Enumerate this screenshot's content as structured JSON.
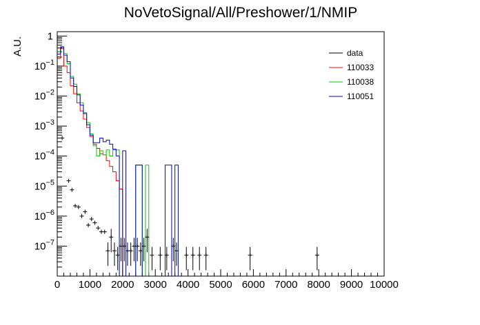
{
  "chart_data": {
    "type": "line",
    "title": "NoVetoSignal/All/Preshower/1/NMIP",
    "xlabel": "",
    "ylabel": "A.U.",
    "xlim": [
      0,
      10000
    ],
    "ylim": [
      1e-08,
      1.4
    ],
    "y_scale": "log",
    "grid": false,
    "legend_position": "top-right",
    "x_ticks": [
      "0",
      "1000",
      "2000",
      "3000",
      "4000",
      "5000",
      "6000",
      "7000",
      "8000",
      "9000",
      "10000"
    ],
    "y_ticks": [
      {
        "value": 1e-07,
        "label": "10",
        "exp": "−7"
      },
      {
        "value": 1e-06,
        "label": "10",
        "exp": "−6"
      },
      {
        "value": 1e-05,
        "label": "10",
        "exp": "−5"
      },
      {
        "value": 0.0001,
        "label": "10",
        "exp": "−4"
      },
      {
        "value": 0.001,
        "label": "10",
        "exp": "−3"
      },
      {
        "value": 0.01,
        "label": "10",
        "exp": "−2"
      },
      {
        "value": 0.1,
        "label": "10",
        "exp": "−1"
      },
      {
        "value": 1,
        "label": "1",
        "exp": ""
      }
    ],
    "bin_width": 100,
    "series": [
      {
        "name": "110033",
        "color": "#ff0000",
        "bins": [
          [
            0,
            0.18
          ],
          [
            100,
            0.38
          ],
          [
            200,
            0.1
          ],
          [
            300,
            0.06
          ],
          [
            400,
            0.022
          ],
          [
            500,
            0.012
          ],
          [
            600,
            0.006
          ],
          [
            700,
            0.0032
          ],
          [
            800,
            0.0017
          ],
          [
            900,
            0.0009
          ],
          [
            1000,
            0.00045
          ],
          [
            1100,
            0.00025
          ],
          [
            1200,
            0.00018
          ],
          [
            1300,
            0.00012
          ],
          [
            1400,
            0.00011
          ],
          [
            1500,
            7e-05
          ],
          [
            1600,
            4.5e-05
          ],
          [
            1700,
            3e-05
          ],
          [
            1800,
            1.5e-05
          ],
          [
            1900,
            8e-06
          ]
        ]
      },
      {
        "name": "110038",
        "color": "#00cc00",
        "bins": [
          [
            0,
            0.3
          ],
          [
            100,
            0.45
          ],
          [
            200,
            0.26
          ],
          [
            300,
            0.12
          ],
          [
            400,
            0.045
          ],
          [
            500,
            0.025
          ],
          [
            600,
            0.012
          ],
          [
            700,
            0.006
          ],
          [
            800,
            0.0028
          ],
          [
            900,
            0.0013
          ],
          [
            1000,
            0.00055
          ],
          [
            1100,
            0.00022
          ],
          [
            1200,
            0.0001
          ],
          [
            1300,
            0.00015
          ],
          [
            1400,
            0.00011
          ],
          [
            1500,
            0.00016
          ],
          [
            1600,
            0.0001
          ],
          [
            1700,
            0.00016
          ],
          [
            1800,
            0.00016
          ],
          [
            1900,
            1e-08
          ],
          [
            2000,
            1e-08
          ],
          [
            2100,
            1e-08
          ],
          [
            2200,
            1e-08
          ],
          [
            2300,
            1e-08
          ],
          [
            2400,
            5e-05
          ],
          [
            2500,
            5e-05
          ],
          [
            2600,
            1e-08
          ],
          [
            2700,
            5e-05
          ],
          [
            2800,
            1e-08
          ]
        ]
      },
      {
        "name": "110051",
        "color": "#0000cc",
        "bins": [
          [
            0,
            0.25
          ],
          [
            100,
            0.42
          ],
          [
            200,
            0.23
          ],
          [
            300,
            0.14
          ],
          [
            400,
            0.04
          ],
          [
            500,
            0.021
          ],
          [
            600,
            0.011
          ],
          [
            700,
            0.005
          ],
          [
            800,
            0.0026
          ],
          [
            900,
            0.0011
          ],
          [
            1000,
            0.0005
          ],
          [
            1100,
            0.00028
          ],
          [
            1200,
            0.00028
          ],
          [
            1300,
            0.0004
          ],
          [
            1400,
            0.0003
          ],
          [
            1500,
            0.00034
          ],
          [
            1600,
            0.00025
          ],
          [
            1700,
            0.00017
          ],
          [
            1800,
            0.0001
          ],
          [
            1900,
            1e-08
          ],
          [
            2000,
            0.00015
          ],
          [
            2100,
            1e-08
          ],
          [
            2200,
            1e-08
          ],
          [
            2300,
            1e-08
          ],
          [
            2400,
            5e-05
          ],
          [
            2500,
            5e-05
          ],
          [
            2600,
            1e-08
          ],
          [
            2700,
            1e-08
          ],
          [
            2800,
            1e-08
          ],
          [
            2900,
            1e-08
          ],
          [
            3000,
            1e-08
          ],
          [
            3100,
            1e-08
          ],
          [
            3200,
            1e-08
          ],
          [
            3300,
            5e-05
          ],
          [
            3400,
            5e-05
          ],
          [
            3500,
            1e-08
          ],
          [
            3600,
            5e-05
          ],
          [
            3700,
            1e-08
          ]
        ]
      },
      {
        "name": "data",
        "color": "#000000",
        "style": "markers",
        "points": [
          [
            150,
            0.0004
          ],
          [
            350,
            1.5e-05
          ],
          [
            450,
            7.5e-06
          ],
          [
            550,
            2.2e-06
          ],
          [
            650,
            2e-06
          ],
          [
            750,
            1e-06
          ],
          [
            850,
            1.4e-06
          ],
          [
            950,
            5e-07
          ],
          [
            1050,
            8e-07
          ],
          [
            1150,
            6e-07
          ],
          [
            1250,
            4e-07
          ],
          [
            1350,
            3e-07
          ],
          [
            1450,
            3e-07
          ],
          [
            1550,
            7e-08
          ],
          [
            1650,
            2e-07
          ],
          [
            1750,
            7e-08
          ],
          [
            1850,
            5e-08
          ],
          [
            1950,
            1e-07
          ],
          [
            2050,
            1e-07
          ],
          [
            2150,
            7e-08
          ],
          [
            2250,
            7e-08
          ],
          [
            2350,
            1e-07
          ],
          [
            2450,
            1e-07
          ],
          [
            2550,
            7e-08
          ],
          [
            2650,
            1e-07
          ],
          [
            2750,
            2e-07
          ],
          [
            2900,
            5e-08
          ],
          [
            3150,
            5e-08
          ],
          [
            3350,
            5e-08
          ],
          [
            3550,
            1e-07
          ],
          [
            3650,
            7e-08
          ],
          [
            3950,
            5e-08
          ],
          [
            4150,
            5e-08
          ],
          [
            4350,
            5e-08
          ],
          [
            4550,
            5e-08
          ],
          [
            5900,
            5e-08
          ],
          [
            7950,
            5e-08
          ]
        ]
      }
    ]
  }
}
